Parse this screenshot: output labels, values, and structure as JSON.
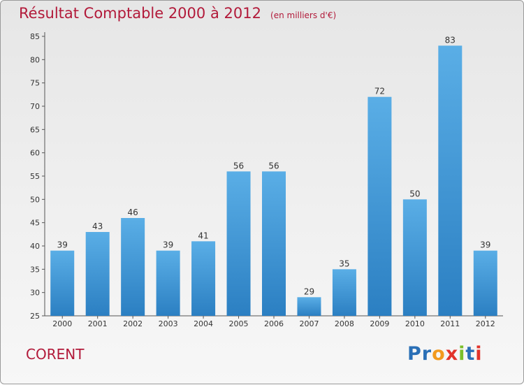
{
  "title": "Résultat Comptable 2000 à 2012",
  "subtitle": "(en milliers d'€)",
  "commune": "CORENT",
  "logo": {
    "text": "Proxiti",
    "letters": [
      "P",
      "r",
      "o",
      "x",
      "i",
      "t",
      "i"
    ]
  },
  "colors": {
    "title": "#b21a3a",
    "bar_top": "#5aaee6",
    "bar_bottom": "#2b7fc2",
    "logo": [
      "#2a6fb6",
      "#2a6fb6",
      "#f29a1e",
      "#e2332a",
      "#7bbf2a",
      "#2a6fb6",
      "#e2332a"
    ]
  },
  "chart_data": {
    "type": "bar",
    "title": "Résultat Comptable 2000 à 2012",
    "categories": [
      "2000",
      "2001",
      "2002",
      "2003",
      "2004",
      "2005",
      "2006",
      "2007",
      "2008",
      "2009",
      "2010",
      "2011",
      "2012"
    ],
    "values": [
      39,
      43,
      46,
      39,
      41,
      56,
      56,
      29,
      35,
      72,
      50,
      83,
      39
    ],
    "ylim": [
      25,
      85
    ],
    "yticks": [
      25,
      30,
      35,
      40,
      45,
      50,
      55,
      60,
      65,
      70,
      75,
      80,
      85
    ],
    "xlabel": "",
    "ylabel": "",
    "grid": false,
    "data_labels": true
  }
}
